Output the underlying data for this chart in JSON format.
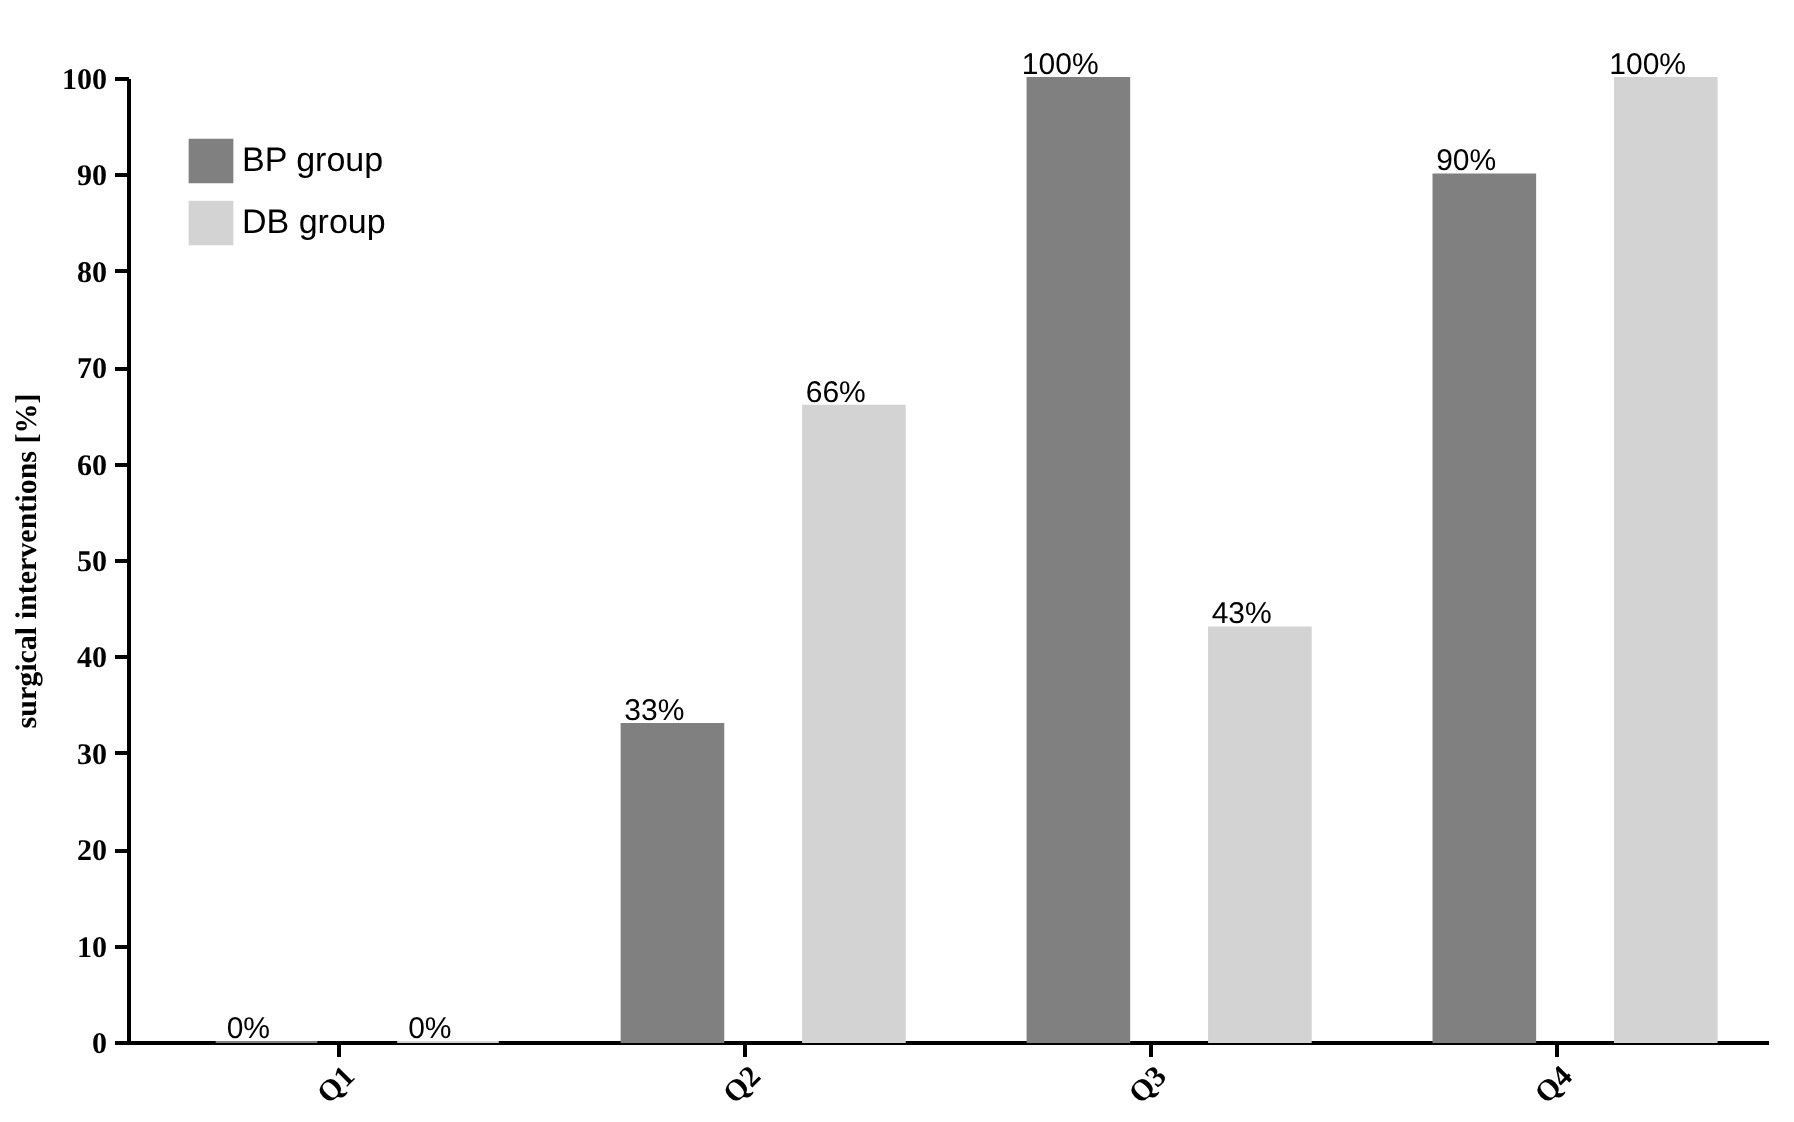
{
  "chart_data": {
    "type": "bar",
    "ylabel": "surgical interventions [%]",
    "categories": [
      "Q1",
      "Q2",
      "Q3",
      "Q4"
    ],
    "series": [
      {
        "name": "BP group",
        "color": "#808080",
        "values": [
          0,
          33,
          100,
          90
        ],
        "value_labels": [
          "0%",
          "33%",
          "100%",
          "90%"
        ]
      },
      {
        "name": "DB group",
        "color": "#d3d3d3",
        "values": [
          0,
          66,
          43,
          100
        ],
        "value_labels": [
          "0%",
          "66%",
          "43%",
          "100%"
        ]
      }
    ],
    "ylim": [
      0,
      100
    ],
    "yticks": [
      0,
      10,
      20,
      30,
      40,
      50,
      60,
      70,
      80,
      90,
      100
    ],
    "grid": false,
    "legend": "top left"
  }
}
